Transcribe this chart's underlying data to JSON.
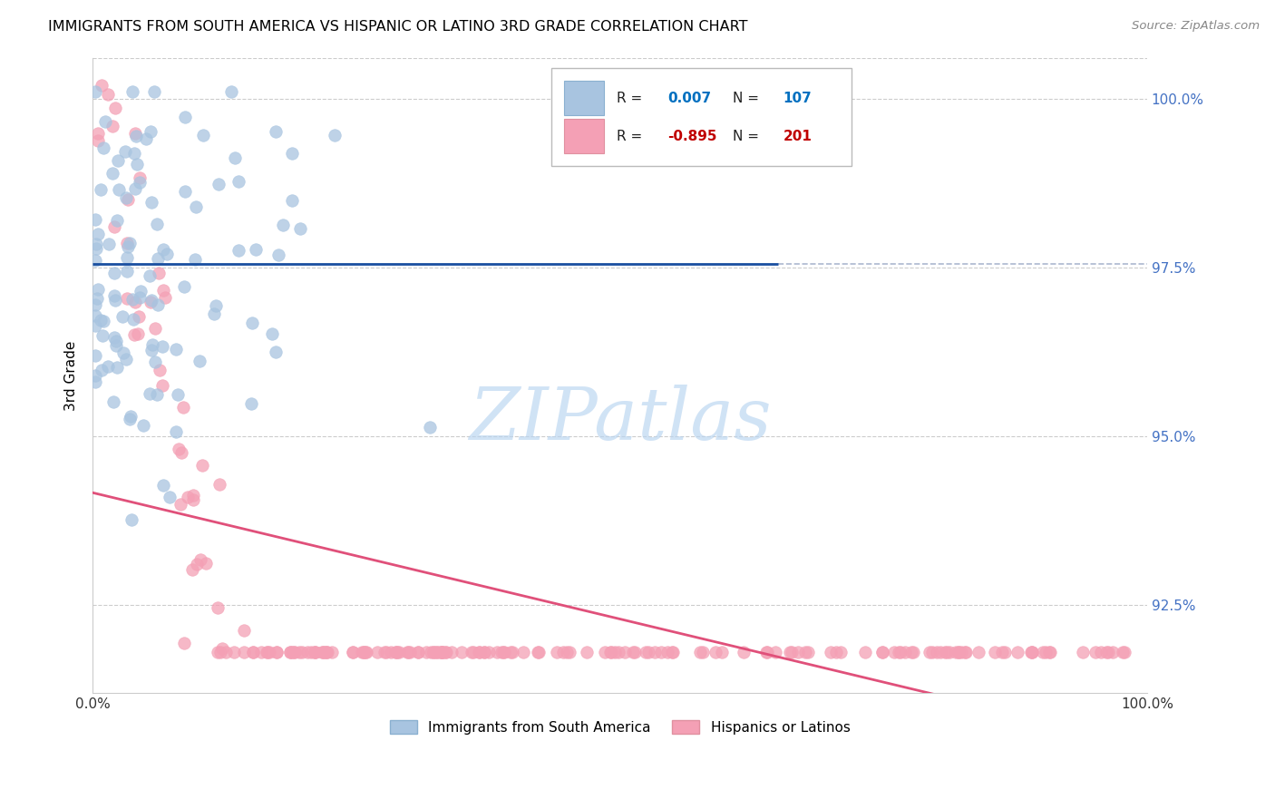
{
  "title": "IMMIGRANTS FROM SOUTH AMERICA VS HISPANIC OR LATINO 3RD GRADE CORRELATION CHART",
  "source": "Source: ZipAtlas.com",
  "ylabel": "3rd Grade",
  "ytick_values": [
    0.925,
    0.95,
    0.975,
    1.0
  ],
  "xlim": [
    0.0,
    1.0
  ],
  "ylim": [
    0.912,
    1.006
  ],
  "legend_blue_r": "0.007",
  "legend_blue_n": "107",
  "legend_pink_r": "-0.895",
  "legend_pink_n": "201",
  "blue_color": "#a8c4e0",
  "pink_color": "#f4a0b5",
  "blue_line_color": "#1a4fa0",
  "pink_line_color": "#e0507a",
  "watermark": "ZIPatlas",
  "watermark_color": "#b8d4f0",
  "n_blue": 107,
  "n_pink": 201,
  "blue_seed": 12,
  "pink_seed": 99
}
